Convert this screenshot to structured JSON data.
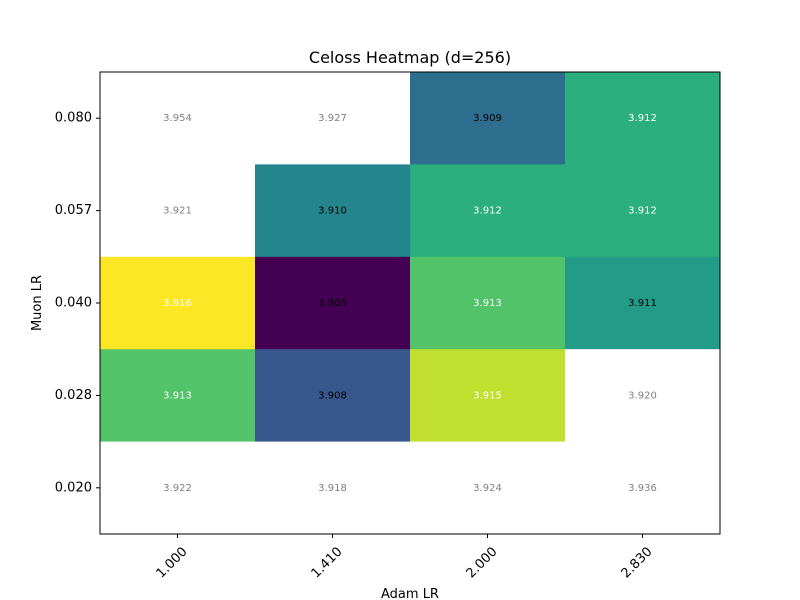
{
  "chart_data": {
    "type": "heatmap",
    "title": "Celoss Heatmap (d=256)",
    "xlabel": "Adam LR",
    "ylabel": "Muon LR",
    "x_tick_labels": [
      "1.000",
      "1.410",
      "2.000",
      "2.830"
    ],
    "y_tick_labels": [
      "0.080",
      "0.057",
      "0.040",
      "0.028",
      "0.020"
    ],
    "colormap": "viridis",
    "color_range": [
      3.905,
      3.916
    ],
    "over_range_color": "#ffffff",
    "grid": false,
    "rows": [
      {
        "muon_lr": "0.080",
        "values": [
          3.954,
          3.927,
          3.909,
          3.912
        ],
        "labels": [
          "3.954",
          "3.927",
          "3.909",
          "3.912"
        ],
        "label_colors": [
          "#808080",
          "#808080",
          "#000000",
          "#ffffff"
        ]
      },
      {
        "muon_lr": "0.057",
        "values": [
          3.921,
          3.91,
          3.912,
          3.912
        ],
        "labels": [
          "3.921",
          "3.910",
          "3.912",
          "3.912"
        ],
        "label_colors": [
          "#808080",
          "#000000",
          "#ffffff",
          "#ffffff"
        ]
      },
      {
        "muon_lr": "0.040",
        "values": [
          3.916,
          3.905,
          3.913,
          3.911
        ],
        "labels": [
          "3.916",
          "3.905",
          "3.913",
          "3.911"
        ],
        "label_colors": [
          "#ffffff",
          "#000000",
          "#ffffff",
          "#000000"
        ]
      },
      {
        "muon_lr": "0.028",
        "values": [
          3.913,
          3.908,
          3.915,
          3.92
        ],
        "labels": [
          "3.913",
          "3.908",
          "3.915",
          "3.920"
        ],
        "label_colors": [
          "#ffffff",
          "#000000",
          "#ffffff",
          "#808080"
        ]
      },
      {
        "muon_lr": "0.020",
        "values": [
          3.922,
          3.918,
          3.924,
          3.936
        ],
        "labels": [
          "3.922",
          "3.918",
          "3.924",
          "3.936"
        ],
        "label_colors": [
          "#808080",
          "#808080",
          "#808080",
          "#808080"
        ]
      }
    ]
  }
}
